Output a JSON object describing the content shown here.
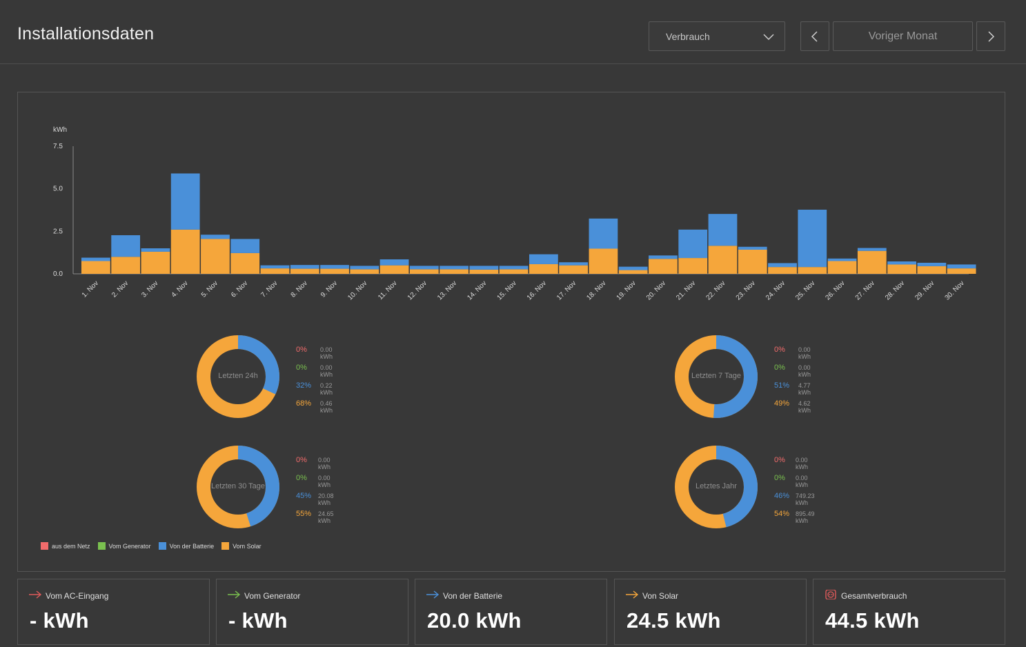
{
  "header": {
    "title": "Installationsdaten",
    "dropdown_value": "Verbrauch",
    "period_label": "Voriger Monat"
  },
  "colors": {
    "grid": "#f26b6b",
    "generator": "#7ac04f",
    "battery": "#4a90d9",
    "solar": "#f5a63b"
  },
  "chart_data": {
    "type": "bar",
    "stacked": true,
    "ylabel": "kWh",
    "ylim": [
      0,
      7.5
    ],
    "yticks": [
      "0.0",
      "2.5",
      "5.0",
      "7.5"
    ],
    "categories": [
      "1. Nov",
      "2. Nov",
      "3. Nov",
      "4. Nov",
      "5. Nov",
      "6. Nov",
      "7. Nov",
      "8. Nov",
      "9. Nov",
      "10. Nov",
      "11. Nov",
      "12. Nov",
      "13. Nov",
      "14. Nov",
      "15. Nov",
      "16. Nov",
      "17. Nov",
      "18. Nov",
      "19. Nov",
      "20. Nov",
      "21. Nov",
      "22. Nov",
      "23. Nov",
      "24. Nov",
      "25. Nov",
      "26. Nov",
      "27. Nov",
      "28. Nov",
      "29. Nov",
      "30. Nov"
    ],
    "series": [
      {
        "name": "Vom Solar",
        "color": "#f5a63b",
        "values": [
          0.75,
          1.0,
          1.3,
          2.6,
          2.05,
          1.22,
          0.32,
          0.3,
          0.3,
          0.27,
          0.5,
          0.27,
          0.27,
          0.25,
          0.27,
          0.57,
          0.5,
          1.48,
          0.22,
          0.88,
          0.93,
          1.65,
          1.42,
          0.4,
          0.4,
          0.75,
          1.35,
          0.55,
          0.45,
          0.32
        ]
      },
      {
        "name": "Von der Batterie",
        "color": "#4a90d9",
        "values": [
          0.2,
          1.27,
          0.2,
          3.3,
          0.25,
          0.83,
          0.18,
          0.22,
          0.22,
          0.2,
          0.35,
          0.2,
          0.2,
          0.22,
          0.2,
          0.58,
          0.18,
          1.77,
          0.2,
          0.2,
          1.67,
          1.87,
          0.17,
          0.23,
          3.37,
          0.15,
          0.17,
          0.18,
          0.2,
          0.23
        ]
      }
    ]
  },
  "donuts": [
    {
      "label": "Letzten 24h",
      "rows": [
        {
          "pct": "0%",
          "kwh": "0.00 kWh"
        },
        {
          "pct": "0%",
          "kwh": "0.00 kWh"
        },
        {
          "pct": "32%",
          "kwh": "0.22 kWh"
        },
        {
          "pct": "68%",
          "kwh": "0.46 kWh"
        }
      ],
      "battery_share": 0.32
    },
    {
      "label": "Letzten 7 Tage",
      "rows": [
        {
          "pct": "0%",
          "kwh": "0.00 kWh"
        },
        {
          "pct": "0%",
          "kwh": "0.00 kWh"
        },
        {
          "pct": "51%",
          "kwh": "4.77 kWh"
        },
        {
          "pct": "49%",
          "kwh": "4.62 kWh"
        }
      ],
      "battery_share": 0.51
    },
    {
      "label": "Letzten 30 Tage",
      "rows": [
        {
          "pct": "0%",
          "kwh": "0.00 kWh"
        },
        {
          "pct": "0%",
          "kwh": "0.00 kWh"
        },
        {
          "pct": "45%",
          "kwh": "20.08 kWh"
        },
        {
          "pct": "55%",
          "kwh": "24.65 kWh"
        }
      ],
      "battery_share": 0.45
    },
    {
      "label": "Letztes Jahr",
      "rows": [
        {
          "pct": "0%",
          "kwh": "0.00 kWh"
        },
        {
          "pct": "0%",
          "kwh": "0.00 kWh"
        },
        {
          "pct": "46%",
          "kwh": "749.23 kWh"
        },
        {
          "pct": "54%",
          "kwh": "895.49 kWh"
        }
      ],
      "battery_share": 0.46
    }
  ],
  "legend": [
    "aus dem Netz",
    "Vom Generator",
    "Von der Batterie",
    "Vom Solar"
  ],
  "cards": [
    {
      "label": "Vom AC-Eingang",
      "value": "- kWh",
      "icon": "arrow-right-icon",
      "color": "#e05a5a"
    },
    {
      "label": "Vom Generator",
      "value": "- kWh",
      "icon": "arrow-right-icon",
      "color": "#7ac04f"
    },
    {
      "label": "Von der Batterie",
      "value": "20.0 kWh",
      "icon": "arrow-right-icon",
      "color": "#4a90d9"
    },
    {
      "label": "Von Solar",
      "value": "24.5 kWh",
      "icon": "arrow-right-icon",
      "color": "#f5a63b"
    },
    {
      "label": "Gesamtverbrauch",
      "value": "44.5 kWh",
      "icon": "power-outlet-icon",
      "color": "#e05a5a"
    }
  ]
}
